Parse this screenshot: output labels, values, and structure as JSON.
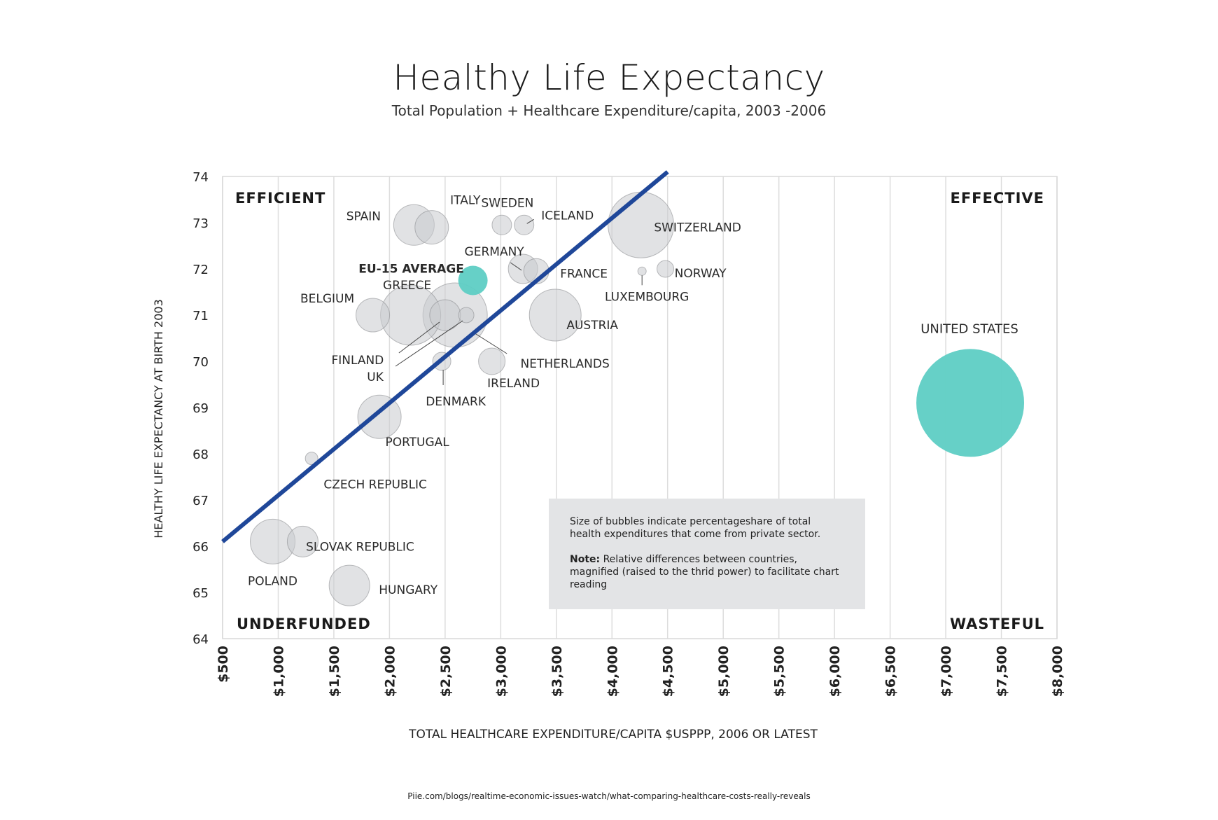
{
  "title": "Healthy Life Expectancy",
  "subtitle": "Total Population + Healthcare Expenditure/capita, 2003 -2006",
  "source": "Piie.com/blogs/realtime-economic-issues-watch/what-comparing-healthcare-costs-really-reveals",
  "note": {
    "text1": "Size of bubbles indicate percentageshare of total health expenditures that come from private sector.",
    "label2": "Note:",
    "text2": "Relative differences between countries, magnified (raised to the thrid power) to facilitate chart reading"
  },
  "chart_data": {
    "type": "scatter",
    "title": "Healthy Life Expectancy",
    "subtitle": "Total Population + Healthcare Expenditure/capita, 2003 -2006",
    "xlabel": "TOTAL HEALTHCARE EXPENDITURE/CAPITA $USPPP, 2006 OR LATEST",
    "ylabel": "HEALTHY LIFE EXPECTANCY AT BIRTH 2003",
    "xlim": [
      500,
      8000
    ],
    "ylim": [
      64,
      74
    ],
    "x_ticks": [
      500,
      1000,
      1500,
      2000,
      2500,
      3000,
      3500,
      4000,
      4500,
      5000,
      5500,
      6000,
      6500,
      7000,
      7500,
      8000
    ],
    "x_tick_labels": [
      "$500",
      "$1,000",
      "$1,500",
      "$2,000",
      "$2,500",
      "$3,000",
      "$3,500",
      "$4,000",
      "$4,500",
      "$5,000",
      "$5,500",
      "$6,000",
      "$6,500",
      "$7,000",
      "$7,500",
      "$8,000"
    ],
    "y_ticks": [
      64,
      65,
      66,
      67,
      68,
      69,
      70,
      71,
      72,
      73,
      74
    ],
    "grid": "vertical",
    "quadrant_labels": {
      "top_left": "EFFICIENT",
      "top_right": "EFFECTIVE",
      "bottom_left": "UNDERFUNDED",
      "bottom_right": "WASTEFUL"
    },
    "trend_line": {
      "x": [
        500,
        4500
      ],
      "y": [
        66.1,
        74.1
      ],
      "color": "#1f4799"
    },
    "colors": {
      "bubble": "#c9cacd",
      "highlight": "#5ecdc4"
    },
    "points": [
      {
        "label": "SPAIN",
        "x": 2220,
        "y": 72.95,
        "size": 29,
        "highlight": false
      },
      {
        "label": "ITALY",
        "x": 2380,
        "y": 72.9,
        "size": 24,
        "highlight": false
      },
      {
        "label": "SWEDEN",
        "x": 3010,
        "y": 72.95,
        "size": 14,
        "highlight": false
      },
      {
        "label": "ICELAND",
        "x": 3210,
        "y": 72.95,
        "size": 14,
        "highlight": false
      },
      {
        "label": "SWITZERLAND",
        "x": 4260,
        "y": 72.95,
        "size": 47,
        "highlight": false
      },
      {
        "label": "GERMANY",
        "x": 3200,
        "y": 72.0,
        "size": 21,
        "highlight": false
      },
      {
        "label": "FRANCE",
        "x": 3320,
        "y": 71.95,
        "size": 18,
        "highlight": false
      },
      {
        "label": "EU-15 AVERAGE",
        "x": 2750,
        "y": 71.75,
        "size": 21,
        "highlight": true
      },
      {
        "label": "LUXEMBOURG",
        "x": 4270,
        "y": 71.95,
        "size": 6,
        "highlight": false
      },
      {
        "label": "NORWAY",
        "x": 4480,
        "y": 72.0,
        "size": 12,
        "highlight": false
      },
      {
        "label": "BELGIUM",
        "x": 1850,
        "y": 71.0,
        "size": 24,
        "highlight": false
      },
      {
        "label": "GREECE",
        "x": 2190,
        "y": 71.0,
        "size": 43,
        "highlight": false
      },
      {
        "label": "NETHERLANDS",
        "x": 2590,
        "y": 71.0,
        "size": 46,
        "highlight": false
      },
      {
        "label": "FINLAND",
        "x": 2500,
        "y": 71.0,
        "size": 22,
        "highlight": false
      },
      {
        "label": "UK",
        "x": 2690,
        "y": 71.0,
        "size": 11,
        "highlight": false
      },
      {
        "label": "AUSTRIA",
        "x": 3490,
        "y": 71.0,
        "size": 37,
        "highlight": false
      },
      {
        "label": "DENMARK",
        "x": 2470,
        "y": 70.0,
        "size": 13,
        "highlight": false
      },
      {
        "label": "IRELAND",
        "x": 2920,
        "y": 70.0,
        "size": 19,
        "highlight": false
      },
      {
        "label": "PORTUGAL",
        "x": 1910,
        "y": 68.8,
        "size": 31,
        "highlight": false
      },
      {
        "label": "CZECH REPUBLIC",
        "x": 1300,
        "y": 67.9,
        "size": 9,
        "highlight": false
      },
      {
        "label": "POLAND",
        "x": 950,
        "y": 66.1,
        "size": 32,
        "highlight": false
      },
      {
        "label": "SLOVAK REPUBLIC",
        "x": 1220,
        "y": 66.1,
        "size": 22,
        "highlight": false
      },
      {
        "label": "HUNGARY",
        "x": 1640,
        "y": 65.15,
        "size": 29,
        "highlight": false
      },
      {
        "label": "UNITED STATES",
        "x": 7220,
        "y": 69.1,
        "size": 77,
        "highlight": true
      }
    ]
  }
}
